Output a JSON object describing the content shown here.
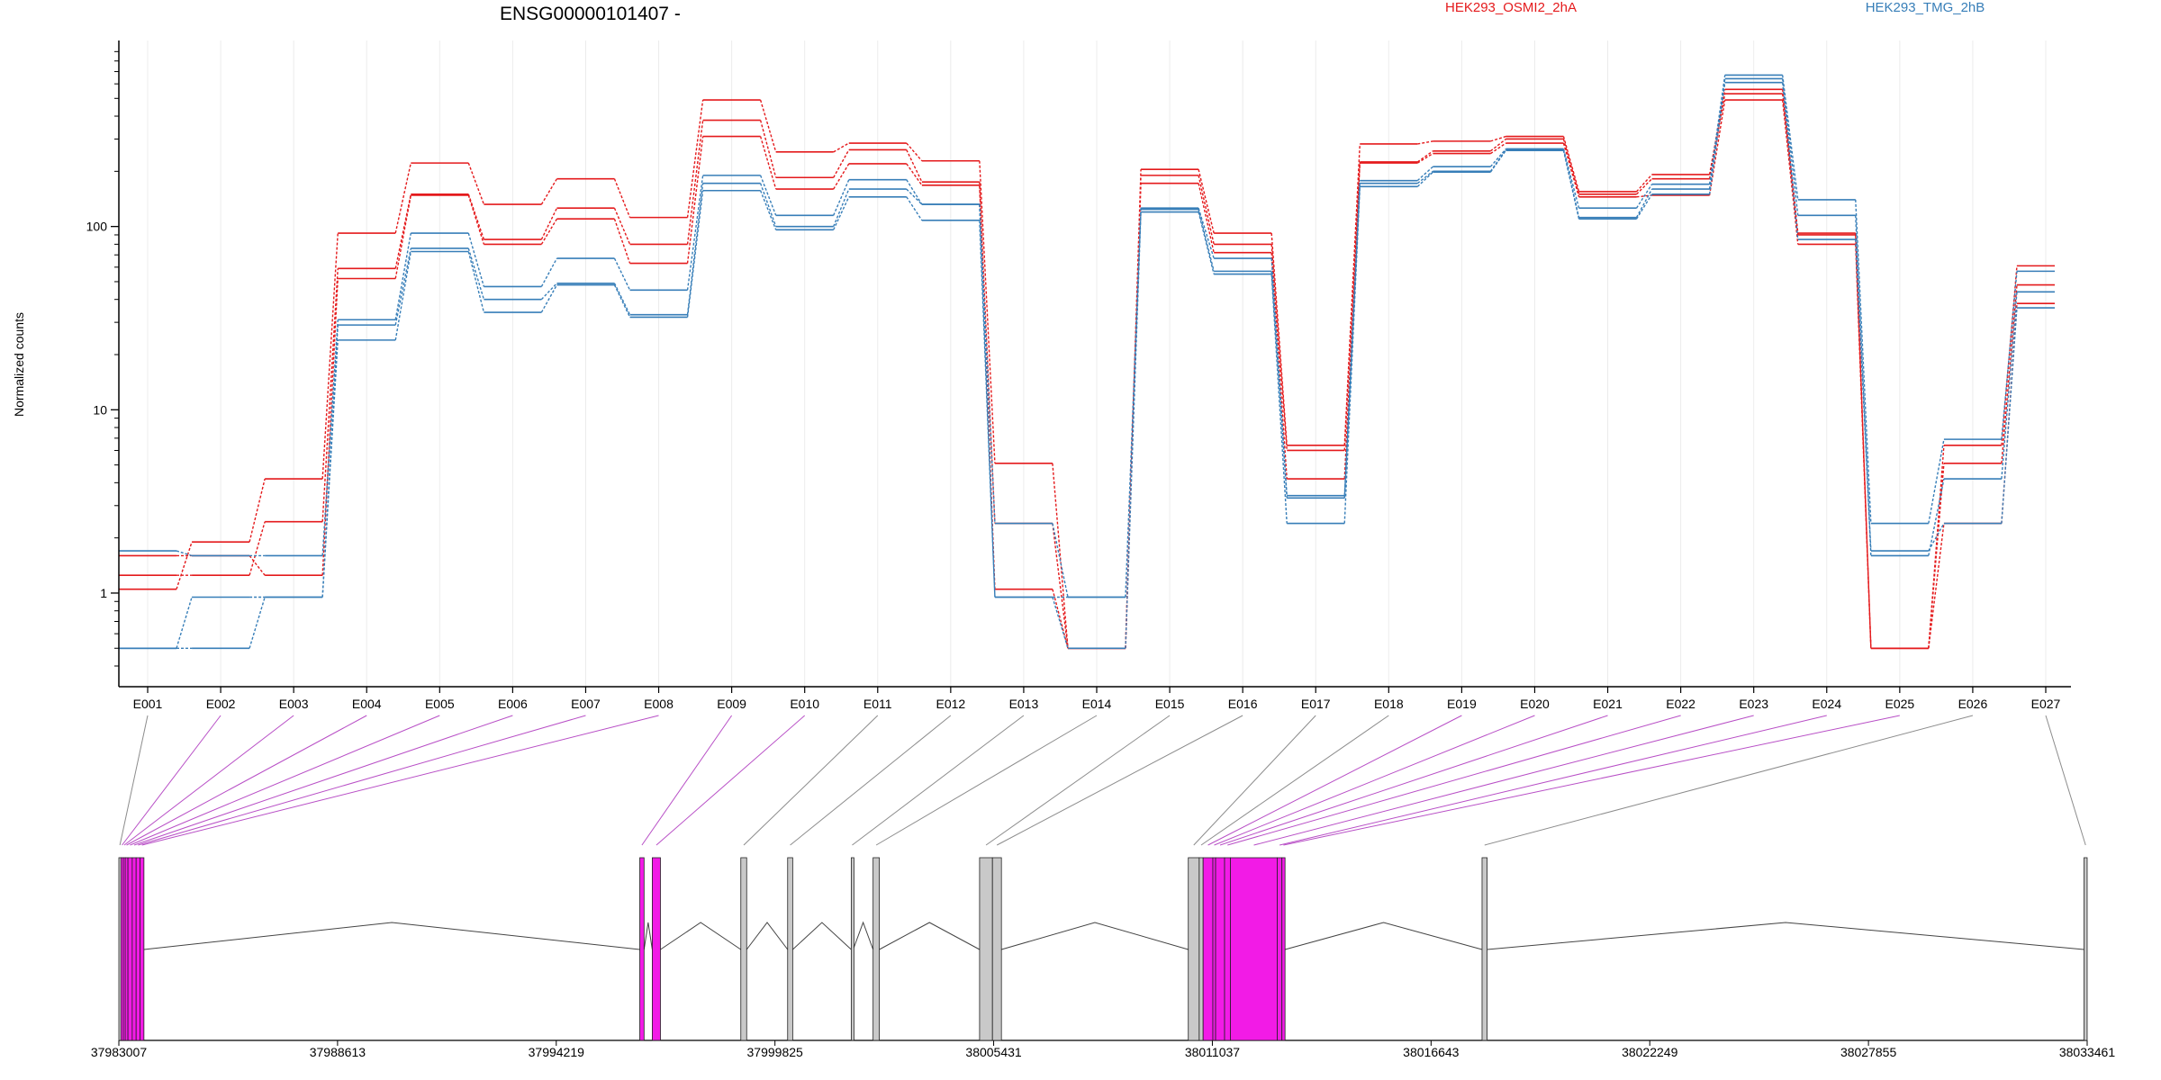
{
  "chart_data": {
    "type": "line",
    "title": "ENSG00000101407 -",
    "ylabel": "Normalized counts",
    "yscale": "log",
    "ylim": [
      0.4,
      1000
    ],
    "y_ticks": [
      1,
      10,
      100
    ],
    "y_tick_labels": [
      "1",
      "10",
      "100"
    ],
    "grid": "vertical",
    "legend_position": "top",
    "categories": [
      "E001",
      "E002",
      "E003",
      "E004",
      "E005",
      "E006",
      "E007",
      "E008",
      "E009",
      "E010",
      "E011",
      "E012",
      "E013",
      "E014",
      "E015",
      "E016",
      "E017",
      "E018",
      "E019",
      "E020",
      "E021",
      "E022",
      "E023",
      "E024",
      "E025",
      "E026",
      "E027"
    ],
    "series": [
      {
        "name": "HEK293_OSMI2_2hA",
        "group": "HEK293_OSMI2_2hA",
        "color": "#e41a1c",
        "values": [
          1.05,
          1.9,
          4.2,
          92,
          222,
          132,
          182,
          112,
          490,
          255,
          285,
          228,
          5.1,
          0.5,
          205,
          92,
          6.4,
          282,
          292,
          310,
          155,
          192,
          560,
          92,
          0.5,
          6.4,
          61
        ]
      },
      {
        "name": "HEK293_OSMI2_2hA",
        "group": "HEK293_OSMI2_2hA",
        "color": "#e41a1c",
        "values": [
          1.25,
          1.25,
          2.45,
          59,
          150,
          85,
          126,
          80,
          380,
          185,
          262,
          175,
          1.05,
          0.5,
          190,
          80,
          6.0,
          225,
          258,
          300,
          150,
          182,
          530,
          90,
          0.5,
          5.1,
          48
        ]
      },
      {
        "name": "HEK293_OSMI2_2hA",
        "group": "HEK293_OSMI2_2hA",
        "color": "#e41a1c",
        "values": [
          1.6,
          1.6,
          1.25,
          52,
          148,
          80,
          110,
          63,
          310,
          160,
          220,
          168,
          2.4,
          0.5,
          172,
          72,
          4.2,
          222,
          250,
          285,
          145,
          148,
          490,
          80,
          0.5,
          2.4,
          38
        ]
      },
      {
        "name": "HEK293_TMG_2hB",
        "group": "HEK293_TMG_2hB",
        "color": "#377eb8",
        "values": [
          1.7,
          1.6,
          1.6,
          31,
          92,
          47,
          67,
          45,
          190,
          115,
          180,
          132,
          2.4,
          0.95,
          126,
          67,
          3.4,
          178,
          212,
          265,
          126,
          170,
          670,
          140,
          2.4,
          6.9,
          57
        ]
      },
      {
        "name": "HEK293_TMG_2hB",
        "group": "HEK293_TMG_2hB",
        "color": "#377eb8",
        "values": [
          0.5,
          0.95,
          0.95,
          29,
          76,
          40,
          49,
          33,
          172,
          100,
          160,
          132,
          0.95,
          0.95,
          124,
          57,
          3.3,
          172,
          200,
          262,
          112,
          160,
          640,
          115,
          1.6,
          4.2,
          44
        ]
      },
      {
        "name": "HEK293_TMG_2hB",
        "group": "HEK293_TMG_2hB",
        "color": "#377eb8",
        "values": [
          0.5,
          0.5,
          0.95,
          24,
          73,
          34,
          48,
          32,
          157,
          96,
          145,
          108,
          0.95,
          0.5,
          120,
          55,
          2.4,
          165,
          198,
          260,
          110,
          150,
          610,
          85,
          1.7,
          2.4,
          36
        ]
      }
    ],
    "legend": [
      {
        "label": "HEK293_OSMI2_2hA",
        "color": "#e41a1c"
      },
      {
        "label": "HEK293_TMG_2hB",
        "color": "#377eb8"
      }
    ],
    "gene_track": {
      "coord_labels": [
        "37983007",
        "37988613",
        "37994219",
        "37999825",
        "38005431",
        "38011037",
        "38016643",
        "38022249",
        "38027855",
        "38033461"
      ],
      "genomic_range": [
        37983007,
        38033461
      ],
      "exons": [
        {
          "id": "E001",
          "start": 37983007,
          "end": 37983060,
          "highlight": false
        },
        {
          "id": "E002",
          "start": 37983060,
          "end": 37983120,
          "highlight": true
        },
        {
          "id": "E003",
          "start": 37983120,
          "end": 37983170,
          "highlight": true
        },
        {
          "id": "E004",
          "start": 37983170,
          "end": 37983240,
          "highlight": true
        },
        {
          "id": "E005",
          "start": 37983240,
          "end": 37983350,
          "highlight": true
        },
        {
          "id": "E006",
          "start": 37983350,
          "end": 37983450,
          "highlight": true
        },
        {
          "id": "E007",
          "start": 37983450,
          "end": 37983550,
          "highlight": true
        },
        {
          "id": "E008",
          "start": 37983550,
          "end": 37983650,
          "highlight": true
        },
        {
          "id": "E009",
          "start": 37996360,
          "end": 37996470,
          "highlight": true
        },
        {
          "id": "E010",
          "start": 37996680,
          "end": 37996890,
          "highlight": true
        },
        {
          "id": "E011",
          "start": 37998950,
          "end": 37999100,
          "highlight": false
        },
        {
          "id": "E012",
          "start": 38000150,
          "end": 38000280,
          "highlight": false
        },
        {
          "id": "E013",
          "start": 38001780,
          "end": 38001830,
          "highlight": false
        },
        {
          "id": "E014",
          "start": 38002340,
          "end": 38002500,
          "highlight": false
        },
        {
          "id": "E015",
          "start": 38005070,
          "end": 38005400,
          "highlight": false
        },
        {
          "id": "E016",
          "start": 38005400,
          "end": 38005630,
          "highlight": false
        },
        {
          "id": "E017",
          "start": 38010420,
          "end": 38010700,
          "highlight": false
        },
        {
          "id": "E018",
          "start": 38010700,
          "end": 38010800,
          "highlight": false
        },
        {
          "id": "E019",
          "start": 38010800,
          "end": 38011050,
          "highlight": true
        },
        {
          "id": "E020",
          "start": 38011050,
          "end": 38011120,
          "highlight": true
        },
        {
          "id": "E021",
          "start": 38011120,
          "end": 38011350,
          "highlight": true
        },
        {
          "id": "E022",
          "start": 38011350,
          "end": 38011500,
          "highlight": true
        },
        {
          "id": "E023",
          "start": 38011500,
          "end": 38012700,
          "highlight": true
        },
        {
          "id": "E024",
          "start": 38012700,
          "end": 38012820,
          "highlight": true
        },
        {
          "id": "E025",
          "start": 38012820,
          "end": 38012900,
          "highlight": true
        },
        {
          "id": "E026",
          "start": 38017950,
          "end": 38018080,
          "highlight": false
        },
        {
          "id": "E027",
          "start": 38033380,
          "end": 38033461,
          "highlight": false
        }
      ],
      "introns": [
        [
          37983650,
          37996360
        ],
        [
          37996470,
          37996680
        ],
        [
          37996890,
          37998950
        ],
        [
          37999100,
          38000150
        ],
        [
          38000280,
          38001780
        ],
        [
          38001830,
          38002340
        ],
        [
          38002500,
          38005070
        ],
        [
          38005630,
          38010420
        ],
        [
          38012900,
          38017950
        ],
        [
          38018080,
          38033380
        ]
      ]
    }
  }
}
